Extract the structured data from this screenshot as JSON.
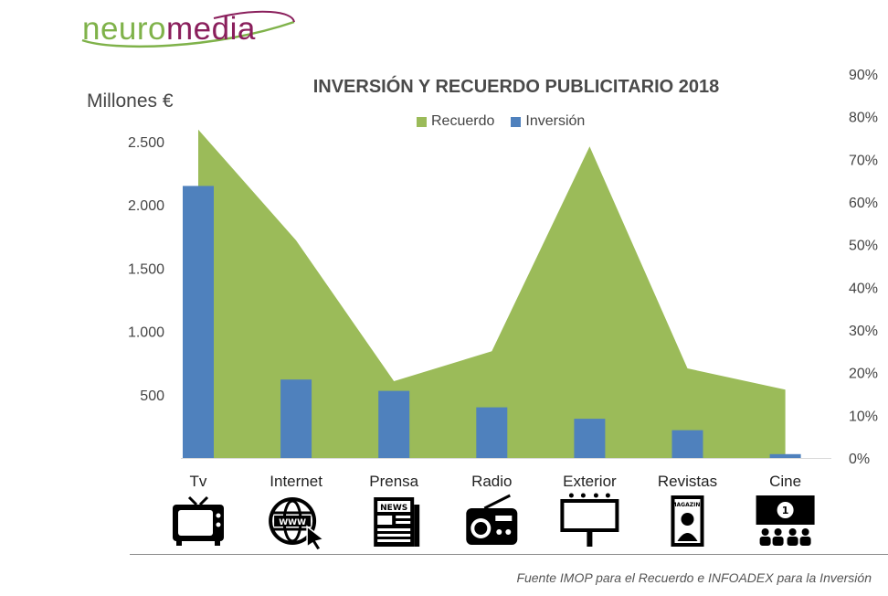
{
  "brand": {
    "part1": "neuro",
    "part2": "media"
  },
  "source_note": "Fuente IMOP para el Recuerdo e INFOADEX para la Inversión",
  "colors": {
    "recuerdo": "#9bbb59",
    "inversion": "#4f81bd",
    "brand_green": "#7fb24a",
    "brand_purple": "#8a1f5c"
  },
  "icons": [
    "tv-icon",
    "internet-globe-icon",
    "newspaper-icon",
    "radio-icon",
    "billboard-icon",
    "magazine-icon",
    "cinema-icon"
  ],
  "chart_data": {
    "type": "bar",
    "title": "INVERSIÓN Y RECUERDO PUBLICITARIO 2018",
    "ylabel": "Millones €",
    "y2label": "",
    "categories": [
      "Tv",
      "Internet",
      "Prensa",
      "Radio",
      "Exterior",
      "Revistas",
      "Cine"
    ],
    "series": [
      {
        "name": "Recuerdo",
        "kind": "area",
        "axis": "right",
        "values": [
          77,
          51,
          18,
          25,
          73,
          21,
          16
        ]
      },
      {
        "name": "Inversión",
        "kind": "bar",
        "axis": "left",
        "values": [
          2150,
          620,
          530,
          400,
          310,
          220,
          30
        ]
      }
    ],
    "left_axis": {
      "ticks": [
        500,
        1000,
        1500,
        2000,
        2500
      ],
      "tick_labels": [
        "500",
        "1.000",
        "1.500",
        "2.000",
        "2.500"
      ],
      "ylim": [
        0,
        2500
      ]
    },
    "right_axis": {
      "ticks": [
        0,
        10,
        20,
        30,
        40,
        50,
        60,
        70,
        80,
        90
      ],
      "tick_labels": [
        "0%",
        "10%",
        "20%",
        "30%",
        "40%",
        "50%",
        "60%",
        "70%",
        "80%",
        "90%"
      ],
      "ylim": [
        0,
        90
      ]
    },
    "grid": false,
    "legend_position": "top-center"
  }
}
